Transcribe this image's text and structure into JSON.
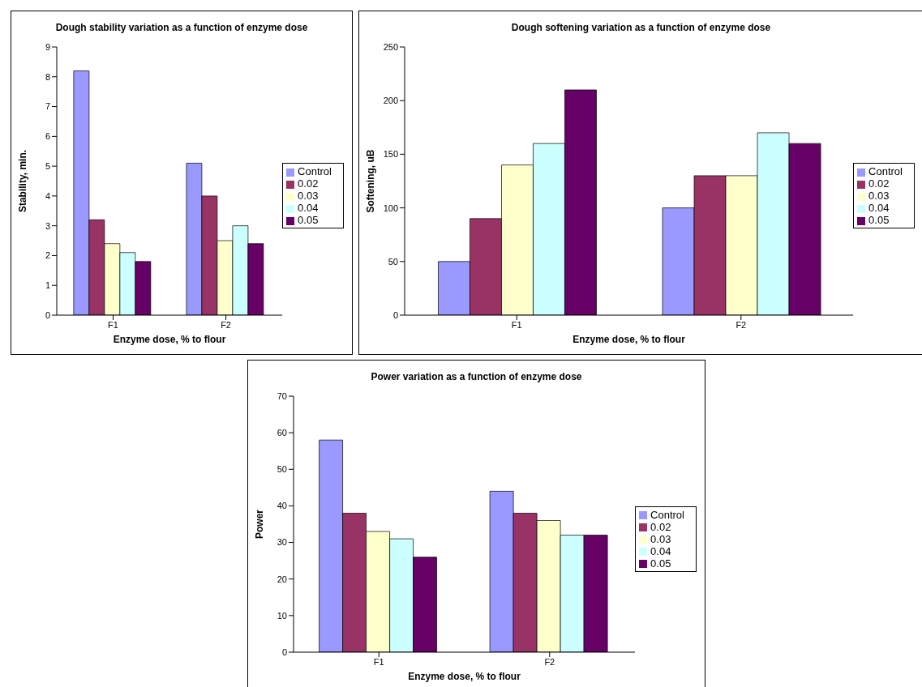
{
  "chart_data": [
    {
      "type": "bar",
      "title": "Dough stability variation as a function of enzyme dose",
      "xlabel": "Enzyme dose, % to flour",
      "ylabel": "Stability, min.",
      "categories": [
        "F1",
        "F2"
      ],
      "ylim": [
        0,
        9
      ],
      "yticks": [
        0,
        1,
        2,
        3,
        4,
        5,
        6,
        7,
        8,
        9
      ],
      "legend": "right",
      "series": [
        {
          "name": "Control",
          "color": "#9999ff",
          "values": [
            8.2,
            5.1
          ]
        },
        {
          "name": "0.02",
          "color": "#993366",
          "values": [
            3.2,
            4.0
          ]
        },
        {
          "name": "0.03",
          "color": "#ffffcc",
          "values": [
            2.4,
            2.5
          ]
        },
        {
          "name": "0.04",
          "color": "#ccffff",
          "values": [
            2.1,
            3.0
          ]
        },
        {
          "name": "0.05",
          "color": "#660066",
          "values": [
            1.8,
            2.4
          ]
        }
      ]
    },
    {
      "type": "bar",
      "title": "Dough softening variation as a function of enzyme dose",
      "xlabel": "Enzyme dose, % to flour",
      "ylabel": "Softening, uB",
      "categories": [
        "F1",
        "F2"
      ],
      "ylim": [
        0,
        250
      ],
      "yticks": [
        0,
        50,
        100,
        150,
        200,
        250
      ],
      "legend": "right",
      "series": [
        {
          "name": "Control",
          "color": "#9999ff",
          "values": [
            50,
            100
          ]
        },
        {
          "name": "0.02",
          "color": "#993366",
          "values": [
            90,
            130
          ]
        },
        {
          "name": "0.03",
          "color": "#ffffcc",
          "values": [
            140,
            130
          ]
        },
        {
          "name": "0.04",
          "color": "#ccffff",
          "values": [
            160,
            170
          ]
        },
        {
          "name": "0.05",
          "color": "#660066",
          "values": [
            210,
            160
          ]
        }
      ]
    },
    {
      "type": "bar",
      "title": "Power variation as a function of enzyme dose",
      "xlabel": "Enzyme dose, % to flour",
      "ylabel": "Power",
      "categories": [
        "F1",
        "F2"
      ],
      "ylim": [
        0,
        70
      ],
      "yticks": [
        0,
        10,
        20,
        30,
        40,
        50,
        60,
        70
      ],
      "legend": "right",
      "series": [
        {
          "name": "Control",
          "color": "#9999ff",
          "values": [
            58,
            44
          ]
        },
        {
          "name": "0.02",
          "color": "#993366",
          "values": [
            38,
            38
          ]
        },
        {
          "name": "0.03",
          "color": "#ffffcc",
          "values": [
            33,
            36
          ]
        },
        {
          "name": "0.04",
          "color": "#ccffff",
          "values": [
            31,
            32
          ]
        },
        {
          "name": "0.05",
          "color": "#660066",
          "values": [
            26,
            32
          ]
        }
      ]
    }
  ]
}
